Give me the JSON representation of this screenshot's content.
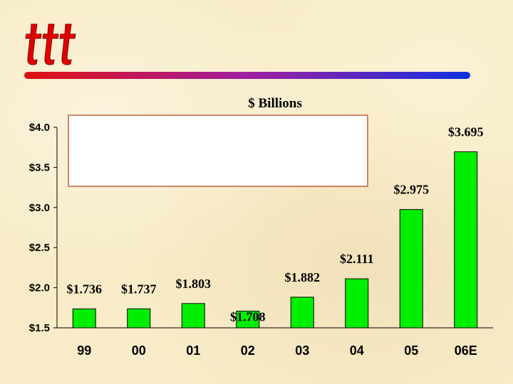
{
  "logo": {
    "icon": "ttt-logo-icon",
    "color": "#e00000"
  },
  "rule": {
    "start_color": "#e01010",
    "mid_color": "#a020a0",
    "end_color": "#1030e0"
  },
  "overlay_box": {
    "fill": "#ffffff",
    "border": "#c06040"
  },
  "chart_data": {
    "type": "bar",
    "title": "$ Billions",
    "xlabel": "",
    "ylabel": "",
    "categories": [
      "99",
      "00",
      "01",
      "02",
      "03",
      "04",
      "05",
      "06E"
    ],
    "values": [
      1.736,
      1.737,
      1.803,
      1.708,
      1.882,
      2.111,
      2.975,
      3.695
    ],
    "data_labels": [
      "$1.736",
      "$1.737",
      "$1.803",
      "$1.708",
      "$1.882",
      "$2.111",
      "$2.975",
      "$3.695"
    ],
    "ylim": [
      1.5,
      4.0
    ],
    "yticks": [
      1.5,
      2.0,
      2.5,
      3.0,
      3.5,
      4.0
    ],
    "ytick_labels": [
      "$1.5",
      "$2.0",
      "$2.5",
      "$3.0",
      "$3.5",
      "$4.0"
    ],
    "bar_color": "#00ee00",
    "grid": false,
    "legend": "none"
  }
}
